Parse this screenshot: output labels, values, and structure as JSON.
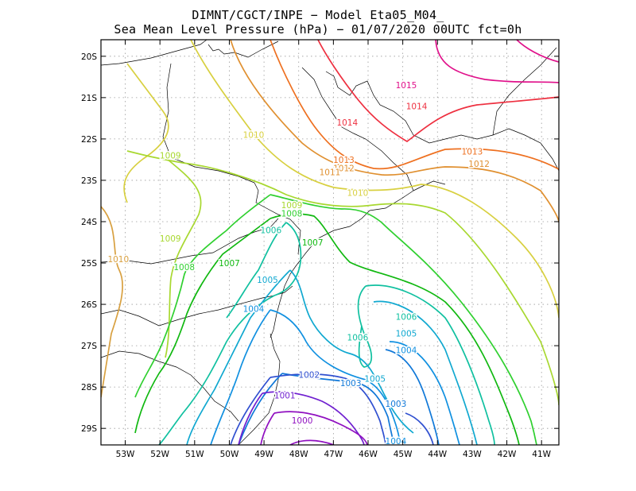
{
  "header": {
    "line1": "DIMNT/CGCT/INPE −  Model Eta05_M04_",
    "line2": "Sea Mean Level Pressure (hPa) − 01/07/2020 00UTC fct=0h"
  },
  "map": {
    "variable": "Sea Mean Level Pressure",
    "units": "hPa",
    "lon_range": [
      -53.7,
      -40.5
    ],
    "lat_range": [
      -29.4,
      -19.6
    ],
    "lon_ticks": [
      "53W",
      "52W",
      "51W",
      "50W",
      "49W",
      "48W",
      "47W",
      "46W",
      "45W",
      "44W",
      "43W",
      "42W",
      "41W"
    ],
    "lat_ticks": [
      "20S",
      "21S",
      "22S",
      "23S",
      "24S",
      "25S",
      "26S",
      "27S",
      "28S",
      "29S"
    ],
    "grid": "dotted",
    "contour_labels": [
      {
        "text": "1015",
        "color": "#e0108a",
        "lon": -44.9,
        "lat": -20.7
      },
      {
        "text": "1014",
        "color": "#ee3040",
        "lon": -44.6,
        "lat": -21.2
      },
      {
        "text": "1014",
        "color": "#ee3040",
        "lon": -46.6,
        "lat": -21.6
      },
      {
        "text": "1013",
        "color": "#ee7020",
        "lon": -43.0,
        "lat": -22.3
      },
      {
        "text": "1013",
        "color": "#ee7020",
        "lon": -46.7,
        "lat": -22.5
      },
      {
        "text": "1012",
        "color": "#e09030",
        "lon": -42.8,
        "lat": -22.6
      },
      {
        "text": "1012",
        "color": "#e09030",
        "lon": -46.7,
        "lat": -22.7
      },
      {
        "text": "1011",
        "color": "#e09030",
        "lon": -47.1,
        "lat": -22.8
      },
      {
        "text": "1010",
        "color": "#d8d040",
        "lon": -49.3,
        "lat": -21.9
      },
      {
        "text": "1010",
        "color": "#d8d040",
        "lon": -46.3,
        "lat": -23.3
      },
      {
        "text": "1010",
        "color": "#d8a040",
        "lon": -53.2,
        "lat": -24.9
      },
      {
        "text": "1009",
        "color": "#a8d830",
        "lon": -51.7,
        "lat": -22.4
      },
      {
        "text": "1009",
        "color": "#a8d830",
        "lon": -48.2,
        "lat": -23.6
      },
      {
        "text": "1009",
        "color": "#a8d830",
        "lon": -51.7,
        "lat": -24.4
      },
      {
        "text": "1008",
        "color": "#30d030",
        "lon": -48.2,
        "lat": -23.8
      },
      {
        "text": "1008",
        "color": "#30d030",
        "lon": -51.3,
        "lat": -25.1
      },
      {
        "text": "1007",
        "color": "#10b810",
        "lon": -50.0,
        "lat": -25.0
      },
      {
        "text": "1007",
        "color": "#10b810",
        "lon": -47.6,
        "lat": -24.5
      },
      {
        "text": "1006",
        "color": "#10c0a0",
        "lon": -48.8,
        "lat": -24.2
      },
      {
        "text": "1006",
        "color": "#10c0a0",
        "lon": -46.3,
        "lat": -26.8
      },
      {
        "text": "1006",
        "color": "#10c0a0",
        "lon": -44.9,
        "lat": -26.3
      },
      {
        "text": "1005",
        "color": "#10a8d0",
        "lon": -48.9,
        "lat": -25.4
      },
      {
        "text": "1005",
        "color": "#10a8d0",
        "lon": -45.8,
        "lat": -27.8
      },
      {
        "text": "1005",
        "color": "#10a8d0",
        "lon": -44.9,
        "lat": -26.7
      },
      {
        "text": "1004",
        "color": "#1090e0",
        "lon": -49.3,
        "lat": -26.1
      },
      {
        "text": "1004",
        "color": "#1090e0",
        "lon": -44.9,
        "lat": -27.1
      },
      {
        "text": "1004",
        "color": "#1090e0",
        "lon": -45.2,
        "lat": -29.3
      },
      {
        "text": "1003",
        "color": "#1078d8",
        "lon": -46.5,
        "lat": -27.9
      },
      {
        "text": "1003",
        "color": "#1078d8",
        "lon": -45.2,
        "lat": -28.4
      },
      {
        "text": "1002",
        "color": "#3050d0",
        "lon": -47.7,
        "lat": -27.7
      },
      {
        "text": "1001",
        "color": "#7020d0",
        "lon": -48.4,
        "lat": -28.2
      },
      {
        "text": "1000",
        "color": "#9010c0",
        "lon": -47.9,
        "lat": -28.8
      }
    ]
  }
}
